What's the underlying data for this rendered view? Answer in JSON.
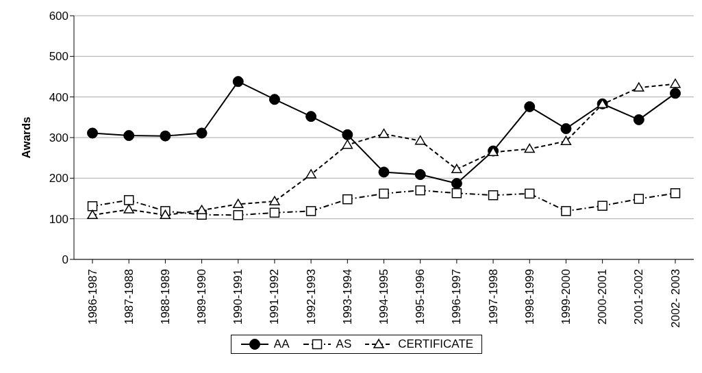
{
  "chart_data": {
    "type": "line",
    "ylabel": "Awards",
    "categories": [
      "1986-1987",
      "1987-1988",
      "1988-1989",
      "1989-1990",
      "1990-1991",
      "1991-1992",
      "1992-1993",
      "1993-1994",
      "1994-1995",
      "1995-1996",
      "1996-1997",
      "1997-1998",
      "1998-1999",
      "1999-2000",
      "2000-2001",
      "2001-2002",
      "2002- 2003"
    ],
    "series": [
      {
        "name": "AA",
        "color": "#000000",
        "marker": "circle",
        "line_style": "solid",
        "values": [
          311,
          305,
          304,
          311,
          438,
          394,
          352,
          307,
          215,
          209,
          187,
          267,
          376,
          322,
          383,
          344,
          409
        ]
      },
      {
        "name": "AS",
        "color": "#000000",
        "marker": "square",
        "line_style": "dashdot",
        "values": [
          131,
          146,
          119,
          110,
          109,
          115,
          119,
          148,
          162,
          170,
          163,
          158,
          162,
          119,
          132,
          149,
          163
        ]
      },
      {
        "name": "CERTIFICATE",
        "color": "#000000",
        "marker": "triangle",
        "line_style": "dashed",
        "values": [
          109,
          123,
          109,
          121,
          136,
          143,
          209,
          282,
          309,
          292,
          222,
          264,
          272,
          291,
          382,
          423,
          432
        ]
      }
    ],
    "ylim": [
      0,
      600
    ],
    "yticks": [
      0,
      100,
      200,
      300,
      400,
      500,
      600
    ],
    "grid": "y",
    "legend": "bottom"
  }
}
